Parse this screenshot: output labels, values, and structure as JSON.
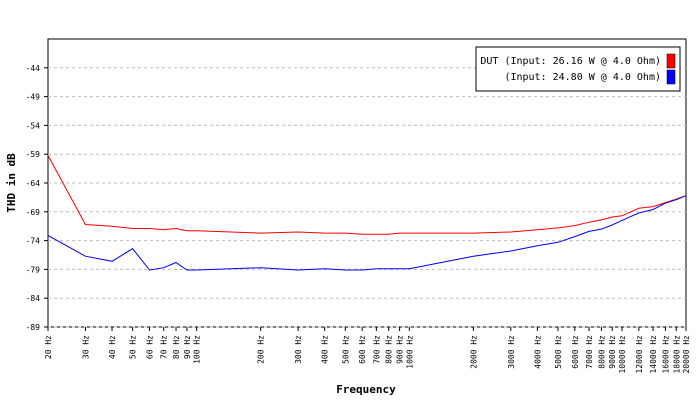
{
  "chart_data": {
    "type": "line",
    "xlabel": "Frequency",
    "ylabel": "THD in dB",
    "x_scale": "log",
    "xlim": [
      20,
      20000
    ],
    "ylim": [
      -89,
      -39
    ],
    "grid": true,
    "legend_position": "top-right",
    "y_ticks": [
      -44,
      -49,
      -54,
      -59,
      -64,
      -69,
      -74,
      -79,
      -84,
      -89
    ],
    "x_ticks": [
      20,
      30,
      40,
      50,
      60,
      70,
      80,
      90,
      100,
      200,
      300,
      400,
      500,
      600,
      700,
      800,
      900,
      1000,
      2000,
      3000,
      4000,
      5000,
      6000,
      7000,
      8000,
      9000,
      10000,
      12000,
      14000,
      16000,
      18000,
      20000
    ],
    "x_tick_labels": [
      "20 Hz",
      "30 Hz",
      "40 Hz",
      "50 Hz",
      "60 Hz",
      "70 Hz",
      "80 Hz",
      "90 Hz",
      "100 Hz",
      "200 Hz",
      "300 Hz",
      "400 Hz",
      "500 Hz",
      "600 Hz",
      "700 Hz",
      "800 Hz",
      "900 Hz",
      "1000 Hz",
      "2000 Hz",
      "3000 Hz",
      "4000 Hz",
      "5000 Hz",
      "6000 Hz",
      "7000 Hz",
      "8000 Hz",
      "9000 Hz",
      "10000 Hz",
      "12000 Hz",
      "14000 Hz",
      "16000 Hz",
      "18000 Hz",
      "20000 Hz"
    ],
    "series": [
      {
        "name": "DUT (Input: 26.16 W @ 4.0 Ohm)",
        "color": "#ff0000",
        "x": [
          20,
          30,
          40,
          50,
          60,
          70,
          80,
          90,
          100,
          200,
          300,
          400,
          500,
          600,
          700,
          800,
          900,
          1000,
          2000,
          3000,
          4000,
          5000,
          6000,
          7000,
          8000,
          9000,
          10000,
          12000,
          14000,
          16000,
          18000,
          20000
        ],
        "y": [
          -59.2,
          -71.2,
          -71.5,
          -71.9,
          -71.9,
          -72.1,
          -71.9,
          -72.3,
          -72.3,
          -72.7,
          -72.5,
          -72.7,
          -72.7,
          -72.9,
          -72.9,
          -72.9,
          -72.7,
          -72.7,
          -72.7,
          -72.5,
          -72.1,
          -71.8,
          -71.4,
          -70.8,
          -70.4,
          -69.9,
          -69.7,
          -68.4,
          -68.1,
          -67.4,
          -66.8,
          -66.2
        ]
      },
      {
        "name": "(Input: 24.80 W @ 4.0 Ohm)",
        "color": "#0000ff",
        "x": [
          20,
          30,
          40,
          50,
          60,
          70,
          80,
          90,
          100,
          200,
          300,
          400,
          500,
          600,
          700,
          800,
          900,
          1000,
          2000,
          3000,
          4000,
          5000,
          6000,
          7000,
          8000,
          9000,
          10000,
          12000,
          14000,
          16000,
          18000,
          20000
        ],
        "y": [
          -73.1,
          -76.7,
          -77.6,
          -75.4,
          -79.1,
          -78.7,
          -77.8,
          -79.1,
          -79.1,
          -78.7,
          -79.1,
          -78.9,
          -79.1,
          -79.1,
          -78.9,
          -78.9,
          -78.9,
          -78.9,
          -76.7,
          -75.8,
          -74.9,
          -74.3,
          -73.3,
          -72.4,
          -72.0,
          -71.3,
          -70.5,
          -69.2,
          -68.6,
          -67.5,
          -66.9,
          -66.2
        ]
      }
    ]
  }
}
